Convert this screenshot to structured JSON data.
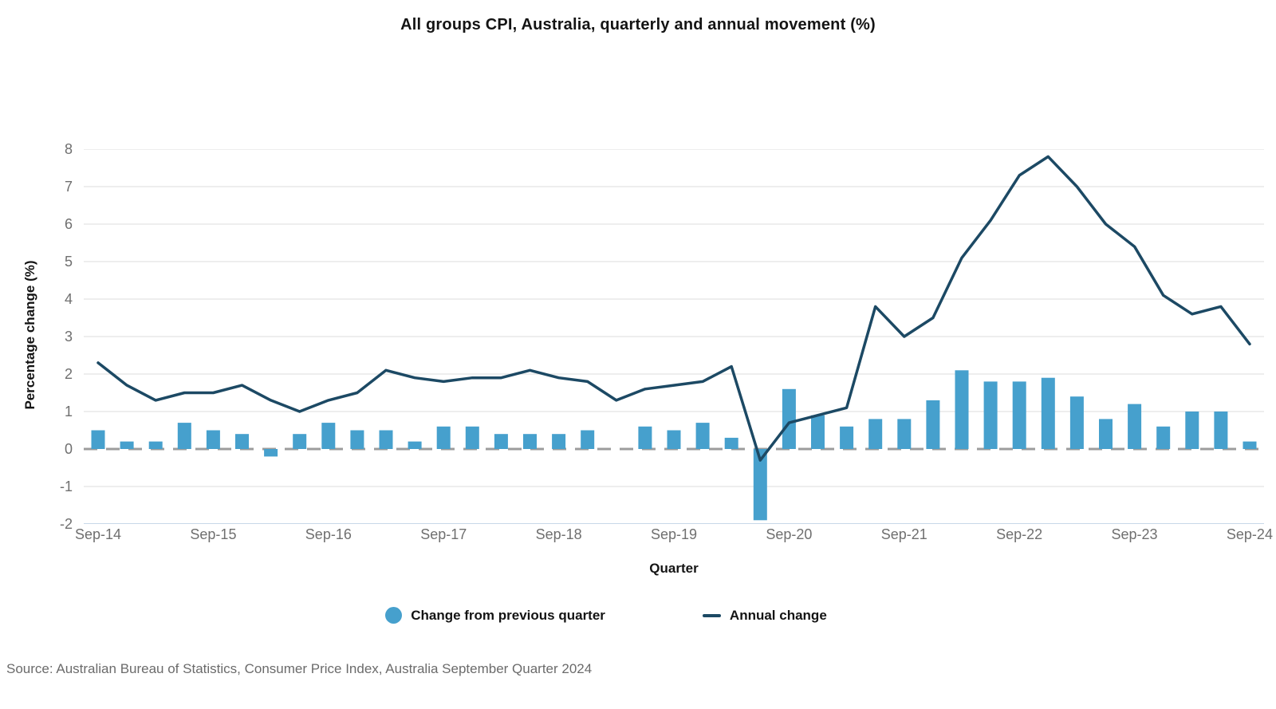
{
  "title": "All groups CPI, Australia, quarterly and annual movement (%)",
  "source": "Source: Australian Bureau of Statistics, Consumer Price Index, Australia September Quarter 2024",
  "legend": [
    {
      "label": "Change from previous quarter",
      "swatch": "circle"
    },
    {
      "label": "Annual change",
      "swatch": "line"
    }
  ],
  "colors": {
    "bar": "#46a0cd",
    "line": "#1c4964",
    "gridline": "#e4e4e4",
    "zero_line": "#9c9c9c",
    "baseline": "#c8d8e8",
    "tick_text": "#6f6f6f",
    "heading_text": "#141414",
    "source_text": "#6b6b6b"
  },
  "chart_data": {
    "type": "bar",
    "title": "All groups CPI, Australia, quarterly and annual movement (%)",
    "xlabel": "Quarter",
    "ylabel": "Percentage change (%)",
    "ylim": [
      -2,
      8
    ],
    "y_ticks": [
      8,
      7,
      6,
      5,
      4,
      3,
      2,
      1,
      0,
      -1,
      -2
    ],
    "x_tick_every": 4,
    "grid": "horizontal",
    "legend_position": "bottom",
    "categories": [
      "Sep-14",
      "Dec-14",
      "Mar-15",
      "Jun-15",
      "Sep-15",
      "Dec-15",
      "Mar-16",
      "Jun-16",
      "Sep-16",
      "Dec-16",
      "Mar-17",
      "Jun-17",
      "Sep-17",
      "Dec-17",
      "Mar-18",
      "Jun-18",
      "Sep-18",
      "Dec-18",
      "Mar-19",
      "Jun-19",
      "Sep-19",
      "Dec-19",
      "Mar-20",
      "Jun-20",
      "Sep-20",
      "Dec-20",
      "Mar-21",
      "Jun-21",
      "Sep-21",
      "Dec-21",
      "Mar-22",
      "Jun-22",
      "Sep-22",
      "Dec-22",
      "Mar-23",
      "Jun-23",
      "Sep-23",
      "Dec-23",
      "Mar-24",
      "Jun-24",
      "Sep-24"
    ],
    "series": [
      {
        "name": "Change from previous quarter",
        "type": "bar",
        "values": [
          0.5,
          0.2,
          0.2,
          0.7,
          0.5,
          0.4,
          -0.2,
          0.4,
          0.7,
          0.5,
          0.5,
          0.2,
          0.6,
          0.6,
          0.4,
          0.4,
          0.4,
          0.5,
          0.0,
          0.6,
          0.5,
          0.7,
          0.3,
          -1.9,
          1.6,
          0.9,
          0.6,
          0.8,
          0.8,
          1.3,
          2.1,
          1.8,
          1.8,
          1.9,
          1.4,
          0.8,
          1.2,
          0.6,
          1.0,
          1.0,
          0.2
        ]
      },
      {
        "name": "Annual change",
        "type": "line",
        "values": [
          2.3,
          1.7,
          1.3,
          1.5,
          1.5,
          1.7,
          1.3,
          1.0,
          1.3,
          1.5,
          2.1,
          1.9,
          1.8,
          1.9,
          1.9,
          2.1,
          1.9,
          1.8,
          1.3,
          1.6,
          1.7,
          1.8,
          2.2,
          -0.3,
          0.7,
          0.9,
          1.1,
          3.8,
          3.0,
          3.5,
          5.1,
          6.1,
          7.3,
          7.8,
          7.0,
          6.0,
          5.4,
          4.1,
          3.6,
          3.8,
          2.8
        ]
      }
    ]
  }
}
